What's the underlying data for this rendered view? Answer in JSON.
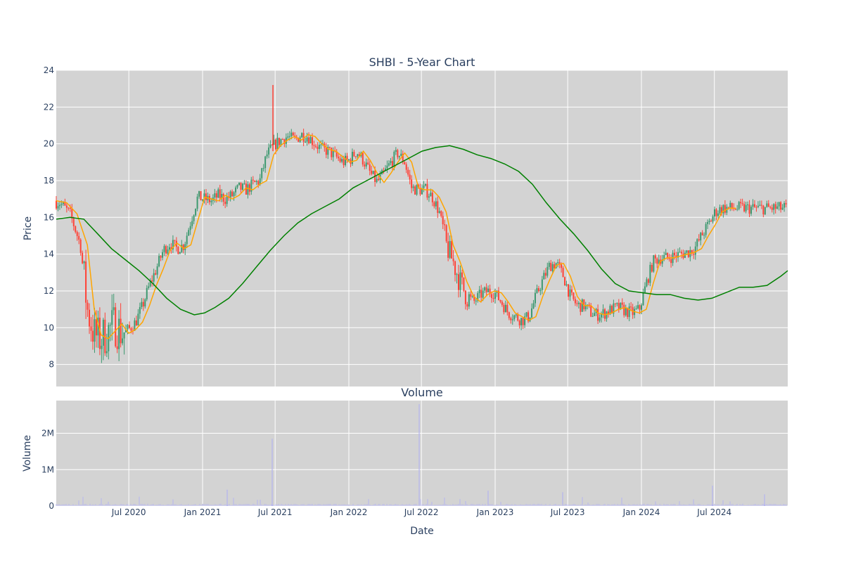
{
  "chart_data": [
    {
      "type": "candlestick",
      "title": "SHBI - 5-Year Chart",
      "ylabel": "Price",
      "xlabel": "",
      "ylim": [
        6.8,
        24.0
      ],
      "yticks": [
        8,
        10,
        12,
        14,
        16,
        18,
        20,
        22,
        24
      ],
      "xlim": [
        "2020-01-02",
        "2024-12-31"
      ],
      "grid": true,
      "increasing_color": "#3d9970",
      "decreasing_color": "#ff4136",
      "overlays": [
        {
          "color": "#ffa500",
          "values": [
            [
              0,
              16.9
            ],
            [
              1.5,
              16.8
            ],
            [
              3,
              16.2
            ],
            [
              4.5,
              14.5
            ],
            [
              5.5,
              11.0
            ],
            [
              6.5,
              9.6
            ],
            [
              7.5,
              9.4
            ],
            [
              8.5,
              9.8
            ],
            [
              9.5,
              10.2
            ],
            [
              10.5,
              9.7
            ],
            [
              11.5,
              9.9
            ],
            [
              12.5,
              10.3
            ],
            [
              13.5,
              11.2
            ],
            [
              14.5,
              12.3
            ],
            [
              15.5,
              13.2
            ],
            [
              16.5,
              14.2
            ],
            [
              17.5,
              14.6
            ],
            [
              18.5,
              14.3
            ],
            [
              19.5,
              14.5
            ],
            [
              20.5,
              15.8
            ],
            [
              21.5,
              17.1
            ],
            [
              22.5,
              17.0
            ],
            [
              23.5,
              16.9
            ],
            [
              24.5,
              17.2
            ],
            [
              25.5,
              17.0
            ],
            [
              26.5,
              17.2
            ],
            [
              27.5,
              17.6
            ],
            [
              28.5,
              17.5
            ],
            [
              29.5,
              17.8
            ],
            [
              30.5,
              18.0
            ],
            [
              31.5,
              19.4
            ],
            [
              32.5,
              19.9
            ],
            [
              33.5,
              20.2
            ],
            [
              34.5,
              20.4
            ],
            [
              35.5,
              20.2
            ],
            [
              36.5,
              20.5
            ],
            [
              37.5,
              20.4
            ],
            [
              38.5,
              20.0
            ],
            [
              39.5,
              19.7
            ],
            [
              40.5,
              19.6
            ],
            [
              41.5,
              19.3
            ],
            [
              42.5,
              19.0
            ],
            [
              43.5,
              19.1
            ],
            [
              44.5,
              19.6
            ],
            [
              45.5,
              19.1
            ],
            [
              46.5,
              18.4
            ],
            [
              47.5,
              17.9
            ],
            [
              48.5,
              18.4
            ],
            [
              49.5,
              19.0
            ],
            [
              50.5,
              19.5
            ],
            [
              51.5,
              19.0
            ],
            [
              52.5,
              17.6
            ],
            [
              53.5,
              17.5
            ],
            [
              54.5,
              17.5
            ],
            [
              55.5,
              17.1
            ],
            [
              56.5,
              16.3
            ],
            [
              57.5,
              14.5
            ],
            [
              58.5,
              13.6
            ],
            [
              59.5,
              12.5
            ],
            [
              60.5,
              11.7
            ],
            [
              61.5,
              11.4
            ],
            [
              62.5,
              11.8
            ],
            [
              63.5,
              12.0
            ],
            [
              64.5,
              11.9
            ],
            [
              65.5,
              11.4
            ],
            [
              66.5,
              10.8
            ],
            [
              67.5,
              10.6
            ],
            [
              68.5,
              10.4
            ],
            [
              69.5,
              10.6
            ],
            [
              70.5,
              11.7
            ],
            [
              71.5,
              12.6
            ],
            [
              72.5,
              13.4
            ],
            [
              73.5,
              13.5
            ],
            [
              74.5,
              12.8
            ],
            [
              75.5,
              11.7
            ],
            [
              76.5,
              11.2
            ],
            [
              77.5,
              11.2
            ],
            [
              78.5,
              10.8
            ],
            [
              79.5,
              10.7
            ],
            [
              80.5,
              10.8
            ],
            [
              81.5,
              11.0
            ],
            [
              82.5,
              11.1
            ],
            [
              83.5,
              10.9
            ],
            [
              84.5,
              10.8
            ],
            [
              85.5,
              11.0
            ],
            [
              86.5,
              12.4
            ],
            [
              87.5,
              13.6
            ],
            [
              88.5,
              13.8
            ],
            [
              89.5,
              13.8
            ],
            [
              90.5,
              13.9
            ],
            [
              91.5,
              14.0
            ],
            [
              92.5,
              14.1
            ],
            [
              93.5,
              14.3
            ],
            [
              94.5,
              15.0
            ],
            [
              95.5,
              15.6
            ],
            [
              96.5,
              16.3
            ],
            [
              97.5,
              16.5
            ],
            [
              98.5,
              16.5
            ]
          ]
        },
        {
          "color": "#008000",
          "values": [
            [
              0,
              15.9
            ],
            [
              2,
              16.0
            ],
            [
              4,
              15.9
            ],
            [
              6,
              15.1
            ],
            [
              8,
              14.3
            ],
            [
              10,
              13.7
            ],
            [
              12,
              13.1
            ],
            [
              14,
              12.4
            ],
            [
              16,
              11.6
            ],
            [
              18,
              11.0
            ],
            [
              20,
              10.7
            ],
            [
              21.5,
              10.8
            ],
            [
              23,
              11.1
            ],
            [
              25,
              11.6
            ],
            [
              27,
              12.4
            ],
            [
              29,
              13.3
            ],
            [
              31,
              14.2
            ],
            [
              33,
              15.0
            ],
            [
              35,
              15.7
            ],
            [
              37,
              16.2
            ],
            [
              39,
              16.6
            ],
            [
              41,
              17.0
            ],
            [
              43,
              17.6
            ],
            [
              45,
              18.0
            ],
            [
              47,
              18.4
            ],
            [
              49,
              18.8
            ],
            [
              51,
              19.2
            ],
            [
              53,
              19.6
            ],
            [
              55,
              19.8
            ],
            [
              57,
              19.9
            ],
            [
              59,
              19.7
            ],
            [
              61,
              19.4
            ],
            [
              63,
              19.2
            ],
            [
              65,
              18.9
            ],
            [
              67,
              18.5
            ],
            [
              69,
              17.8
            ],
            [
              71,
              16.8
            ],
            [
              73,
              15.9
            ],
            [
              75,
              15.1
            ],
            [
              77,
              14.2
            ],
            [
              79,
              13.2
            ],
            [
              81,
              12.4
            ],
            [
              83,
              12.0
            ],
            [
              85,
              11.9
            ],
            [
              87,
              11.8
            ],
            [
              89,
              11.8
            ],
            [
              91,
              11.6
            ],
            [
              93,
              11.5
            ],
            [
              95,
              11.6
            ],
            [
              97,
              11.9
            ],
            [
              99,
              12.2
            ],
            [
              101,
              12.2
            ],
            [
              103,
              12.3
            ],
            [
              105,
              12.8
            ],
            [
              106,
              13.1
            ]
          ]
        }
      ]
    },
    {
      "type": "bar",
      "title": "Volume",
      "ylabel": "Volume",
      "xlabel": "Date",
      "ylim": [
        0,
        2900000
      ],
      "yticks": [
        0,
        1000000,
        2000000
      ],
      "ytick_labels": [
        "0",
        "1M",
        "2M"
      ],
      "xticks": [
        "2020-07-01",
        "2021-01-01",
        "2021-07-01",
        "2022-01-01",
        "2022-07-01",
        "2023-01-01",
        "2023-07-01",
        "2024-01-01",
        "2024-07-01"
      ],
      "xtick_labels": [
        "Jul 2020",
        "Jan 2021",
        "Jul 2021",
        "Jan 2022",
        "Jul 2022",
        "Jan 2023",
        "Jul 2023",
        "Jan 2024",
        "Jul 2024"
      ],
      "bar_color": "#b4b4f0",
      "grid": true
    }
  ]
}
